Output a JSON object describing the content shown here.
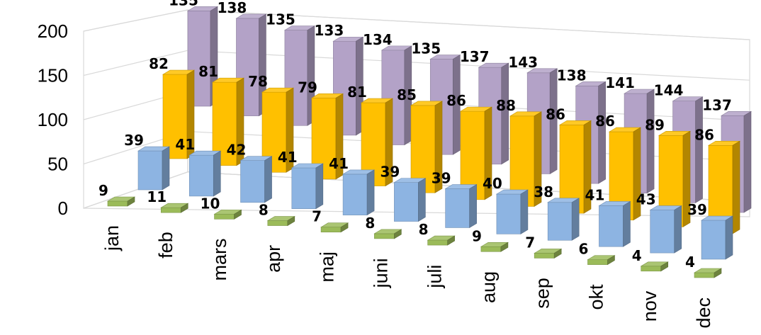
{
  "chart_data": {
    "type": "bar",
    "title": "",
    "xlabel": "",
    "ylabel": "",
    "ylim": [
      0,
      200
    ],
    "yticks": [
      "0",
      "50",
      "100",
      "150",
      "200"
    ],
    "grid": true,
    "legend": "none",
    "categories": [
      "jan",
      "feb",
      "mars",
      "apr",
      "maj",
      "juni",
      "juli",
      "aug",
      "sep",
      "okt",
      "nov",
      "dec"
    ],
    "series": [
      {
        "color": "#9BBB59",
        "values": [
          9,
          11,
          10,
          8,
          7,
          8,
          8,
          9,
          7,
          6,
          4,
          4
        ],
        "labels": [
          "9",
          "11",
          "10",
          "8",
          "7",
          "8",
          "8",
          "9",
          "7",
          "6",
          "4",
          "4"
        ]
      },
      {
        "color": "#8DB4E2",
        "values": [
          39,
          41,
          42,
          41,
          41,
          39,
          39,
          40,
          38,
          41,
          43,
          39
        ],
        "labels": [
          "39",
          "41",
          "42",
          "41",
          "41",
          "39",
          "39",
          "40",
          "38",
          "41",
          "43",
          "39"
        ]
      },
      {
        "color": "#FFC000",
        "values": [
          82,
          81,
          78,
          79,
          81,
          85,
          86,
          88,
          86,
          86,
          89,
          86
        ],
        "labels": [
          "82",
          "81",
          "78",
          "79",
          "81",
          "85",
          "86",
          "88",
          "86",
          "86",
          "89",
          "86"
        ]
      },
      {
        "color": "#B3A2C7",
        "values": [
          135,
          138,
          135,
          133,
          134,
          135,
          137,
          143,
          138,
          141,
          144,
          137
        ],
        "labels": [
          "135",
          "138",
          "135",
          "133",
          "134",
          "135",
          "137",
          "143",
          "138",
          "141",
          "144",
          "137"
        ]
      }
    ]
  }
}
